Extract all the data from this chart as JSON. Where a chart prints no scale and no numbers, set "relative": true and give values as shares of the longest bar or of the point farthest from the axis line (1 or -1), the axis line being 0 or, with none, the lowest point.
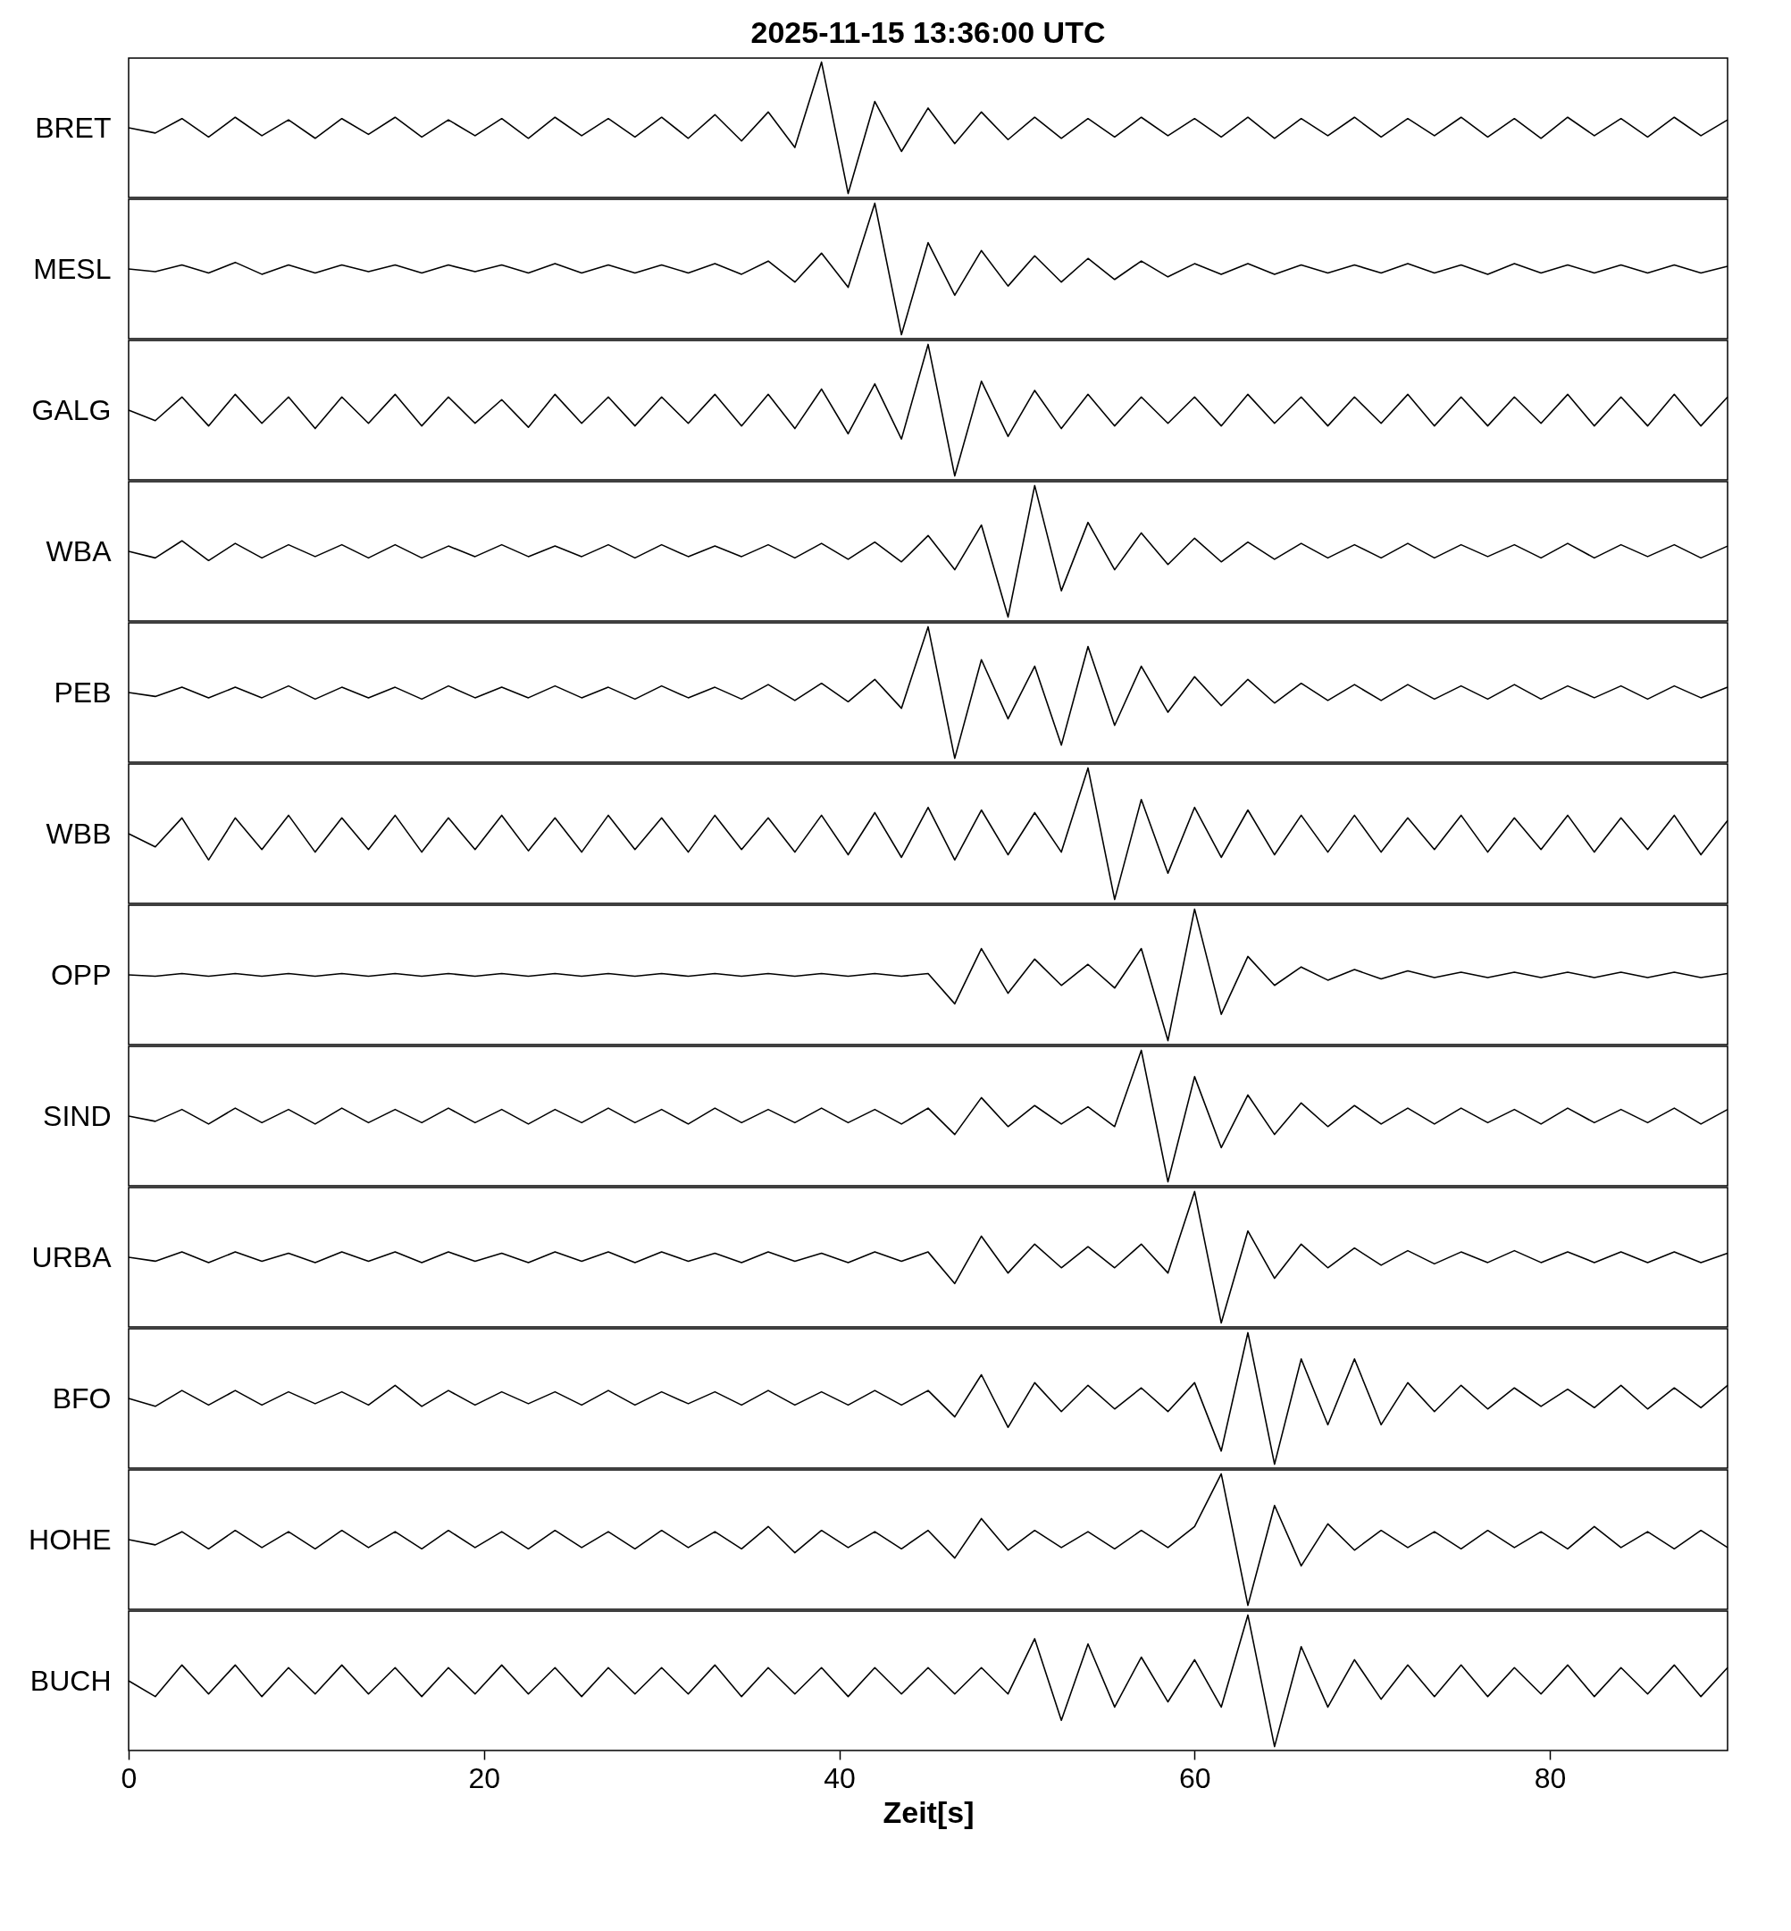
{
  "chart_data": [
    {
      "type": "line",
      "relative": true,
      "title": "2025-11-15  13:36:00 UTC",
      "ylabel": "BRET",
      "xlim": [
        0,
        90
      ],
      "xticks": [
        0,
        20,
        40,
        60,
        80
      ],
      "tick_labels": false,
      "x": [
        0,
        1.5,
        3,
        4.5,
        6,
        7.5,
        9,
        10.5,
        12,
        13.5,
        15,
        16.5,
        18,
        19.5,
        21,
        22.5,
        24,
        25.5,
        27,
        28.5,
        30,
        31.5,
        33,
        34.5,
        36,
        37.5,
        39,
        40.5,
        42,
        43.5,
        45,
        46.5,
        48,
        49.5,
        51,
        52.5,
        54,
        55.5,
        57,
        58.5,
        60,
        61.5,
        63,
        64.5,
        66,
        67.5,
        69,
        70.5,
        72,
        73.5,
        75,
        76.5,
        78,
        79.5,
        81,
        82.5,
        84,
        85.5,
        87,
        88.5,
        90
      ],
      "series": [
        {
          "color": "#000000",
          "values": [
            0.5,
            0.46,
            0.57,
            0.43,
            0.58,
            0.44,
            0.56,
            0.42,
            0.57,
            0.45,
            0.58,
            0.43,
            0.56,
            0.44,
            0.57,
            0.42,
            0.58,
            0.44,
            0.57,
            0.43,
            0.58,
            0.42,
            0.6,
            0.4,
            0.62,
            0.35,
            1.0,
            0.0,
            0.7,
            0.32,
            0.65,
            0.38,
            0.62,
            0.41,
            0.58,
            0.42,
            0.57,
            0.43,
            0.58,
            0.44,
            0.57,
            0.43,
            0.58,
            0.42,
            0.57,
            0.44,
            0.58,
            0.43,
            0.57,
            0.44,
            0.58,
            0.43,
            0.57,
            0.42,
            0.58,
            0.44,
            0.57,
            0.43,
            0.58,
            0.44,
            0.56
          ]
        }
      ]
    },
    {
      "type": "line",
      "relative": true,
      "ylabel": "MESL",
      "xlim": [
        0,
        90
      ],
      "xticks": [
        0,
        20,
        40,
        60,
        80
      ],
      "tick_labels": false,
      "x": [
        0,
        1.5,
        3,
        4.5,
        6,
        7.5,
        9,
        10.5,
        12,
        13.5,
        15,
        16.5,
        18,
        19.5,
        21,
        22.5,
        24,
        25.5,
        27,
        28.5,
        30,
        31.5,
        33,
        34.5,
        36,
        37.5,
        39,
        40.5,
        42,
        43.5,
        45,
        46.5,
        48,
        49.5,
        51,
        52.5,
        54,
        55.5,
        57,
        58.5,
        60,
        61.5,
        63,
        64.5,
        66,
        67.5,
        69,
        70.5,
        72,
        73.5,
        75,
        76.5,
        78,
        79.5,
        81,
        82.5,
        84,
        85.5,
        87,
        88.5,
        90
      ],
      "series": [
        {
          "color": "#000000",
          "values": [
            0.5,
            0.48,
            0.53,
            0.47,
            0.55,
            0.46,
            0.53,
            0.47,
            0.53,
            0.48,
            0.53,
            0.47,
            0.53,
            0.48,
            0.53,
            0.47,
            0.54,
            0.47,
            0.53,
            0.47,
            0.53,
            0.47,
            0.54,
            0.46,
            0.56,
            0.4,
            0.62,
            0.36,
            1.0,
            0.0,
            0.7,
            0.3,
            0.64,
            0.37,
            0.6,
            0.4,
            0.58,
            0.42,
            0.56,
            0.44,
            0.54,
            0.46,
            0.54,
            0.46,
            0.53,
            0.47,
            0.53,
            0.47,
            0.54,
            0.47,
            0.53,
            0.46,
            0.54,
            0.47,
            0.53,
            0.47,
            0.53,
            0.47,
            0.53,
            0.47,
            0.52
          ]
        }
      ]
    },
    {
      "type": "line",
      "relative": true,
      "ylabel": "GALG",
      "xlim": [
        0,
        90
      ],
      "xticks": [
        0,
        20,
        40,
        60,
        80
      ],
      "tick_labels": false,
      "x": [
        0,
        1.5,
        3,
        4.5,
        6,
        7.5,
        9,
        10.5,
        12,
        13.5,
        15,
        16.5,
        18,
        19.5,
        21,
        22.5,
        24,
        25.5,
        27,
        28.5,
        30,
        31.5,
        33,
        34.5,
        36,
        37.5,
        39,
        40.5,
        42,
        43.5,
        45,
        46.5,
        48,
        49.5,
        51,
        52.5,
        54,
        55.5,
        57,
        58.5,
        60,
        61.5,
        63,
        64.5,
        66,
        67.5,
        69,
        70.5,
        72,
        73.5,
        75,
        76.5,
        78,
        79.5,
        81,
        82.5,
        84,
        85.5,
        87,
        88.5,
        90
      ],
      "series": [
        {
          "color": "#000000",
          "values": [
            0.5,
            0.42,
            0.6,
            0.38,
            0.62,
            0.4,
            0.6,
            0.36,
            0.6,
            0.4,
            0.62,
            0.38,
            0.6,
            0.4,
            0.58,
            0.37,
            0.62,
            0.4,
            0.6,
            0.38,
            0.6,
            0.4,
            0.62,
            0.38,
            0.62,
            0.36,
            0.66,
            0.32,
            0.7,
            0.28,
            1.0,
            0.0,
            0.72,
            0.3,
            0.65,
            0.36,
            0.62,
            0.38,
            0.6,
            0.4,
            0.6,
            0.38,
            0.62,
            0.4,
            0.6,
            0.38,
            0.6,
            0.4,
            0.62,
            0.38,
            0.6,
            0.38,
            0.6,
            0.4,
            0.62,
            0.38,
            0.6,
            0.38,
            0.62,
            0.38,
            0.6
          ]
        }
      ]
    },
    {
      "type": "line",
      "relative": true,
      "ylabel": "WBA",
      "xlim": [
        0,
        90
      ],
      "xticks": [
        0,
        20,
        40,
        60,
        80
      ],
      "tick_labels": false,
      "x": [
        0,
        1.5,
        3,
        4.5,
        6,
        7.5,
        9,
        10.5,
        12,
        13.5,
        15,
        16.5,
        18,
        19.5,
        21,
        22.5,
        24,
        25.5,
        27,
        28.5,
        30,
        31.5,
        33,
        34.5,
        36,
        37.5,
        39,
        40.5,
        42,
        43.5,
        45,
        46.5,
        48,
        49.5,
        51,
        52.5,
        54,
        55.5,
        57,
        58.5,
        60,
        61.5,
        63,
        64.5,
        66,
        67.5,
        69,
        70.5,
        72,
        73.5,
        75,
        76.5,
        78,
        79.5,
        81,
        82.5,
        84,
        85.5,
        87,
        88.5,
        90
      ],
      "series": [
        {
          "color": "#000000",
          "values": [
            0.5,
            0.45,
            0.58,
            0.43,
            0.56,
            0.45,
            0.55,
            0.46,
            0.55,
            0.45,
            0.55,
            0.45,
            0.54,
            0.46,
            0.55,
            0.46,
            0.54,
            0.46,
            0.55,
            0.45,
            0.55,
            0.46,
            0.54,
            0.46,
            0.55,
            0.45,
            0.56,
            0.44,
            0.57,
            0.42,
            0.62,
            0.36,
            0.7,
            0.0,
            1.0,
            0.2,
            0.72,
            0.36,
            0.64,
            0.4,
            0.6,
            0.42,
            0.57,
            0.44,
            0.56,
            0.45,
            0.55,
            0.45,
            0.56,
            0.45,
            0.55,
            0.46,
            0.55,
            0.45,
            0.56,
            0.45,
            0.55,
            0.46,
            0.55,
            0.45,
            0.54
          ]
        }
      ]
    },
    {
      "type": "line",
      "relative": true,
      "ylabel": "PEB",
      "xlim": [
        0,
        90
      ],
      "xticks": [
        0,
        20,
        40,
        60,
        80
      ],
      "tick_labels": false,
      "x": [
        0,
        1.5,
        3,
        4.5,
        6,
        7.5,
        9,
        10.5,
        12,
        13.5,
        15,
        16.5,
        18,
        19.5,
        21,
        22.5,
        24,
        25.5,
        27,
        28.5,
        30,
        31.5,
        33,
        34.5,
        36,
        37.5,
        39,
        40.5,
        42,
        43.5,
        45,
        46.5,
        48,
        49.5,
        51,
        52.5,
        54,
        55.5,
        57,
        58.5,
        60,
        61.5,
        63,
        64.5,
        66,
        67.5,
        69,
        70.5,
        72,
        73.5,
        75,
        76.5,
        78,
        79.5,
        81,
        82.5,
        84,
        85.5,
        87,
        88.5,
        90
      ],
      "series": [
        {
          "color": "#000000",
          "values": [
            0.5,
            0.47,
            0.54,
            0.46,
            0.54,
            0.46,
            0.55,
            0.45,
            0.54,
            0.46,
            0.54,
            0.45,
            0.55,
            0.46,
            0.54,
            0.46,
            0.55,
            0.46,
            0.54,
            0.45,
            0.55,
            0.46,
            0.54,
            0.45,
            0.56,
            0.44,
            0.57,
            0.43,
            0.6,
            0.38,
            1.0,
            0.0,
            0.75,
            0.3,
            0.7,
            0.1,
            0.85,
            0.25,
            0.7,
            0.35,
            0.62,
            0.4,
            0.6,
            0.42,
            0.57,
            0.44,
            0.56,
            0.44,
            0.56,
            0.45,
            0.55,
            0.45,
            0.56,
            0.45,
            0.55,
            0.46,
            0.55,
            0.45,
            0.55,
            0.46,
            0.54
          ]
        }
      ]
    },
    {
      "type": "line",
      "relative": true,
      "ylabel": "WBB",
      "xlim": [
        0,
        90
      ],
      "xticks": [
        0,
        20,
        40,
        60,
        80
      ],
      "tick_labels": false,
      "x": [
        0,
        1.5,
        3,
        4.5,
        6,
        7.5,
        9,
        10.5,
        12,
        13.5,
        15,
        16.5,
        18,
        19.5,
        21,
        22.5,
        24,
        25.5,
        27,
        28.5,
        30,
        31.5,
        33,
        34.5,
        36,
        37.5,
        39,
        40.5,
        42,
        43.5,
        45,
        46.5,
        48,
        49.5,
        51,
        52.5,
        54,
        55.5,
        57,
        58.5,
        60,
        61.5,
        63,
        64.5,
        66,
        67.5,
        69,
        70.5,
        72,
        73.5,
        75,
        76.5,
        78,
        79.5,
        81,
        82.5,
        84,
        85.5,
        87,
        88.5,
        90
      ],
      "series": [
        {
          "color": "#000000",
          "values": [
            0.5,
            0.4,
            0.62,
            0.3,
            0.62,
            0.38,
            0.64,
            0.36,
            0.62,
            0.38,
            0.64,
            0.36,
            0.62,
            0.38,
            0.64,
            0.37,
            0.62,
            0.36,
            0.64,
            0.38,
            0.62,
            0.36,
            0.64,
            0.38,
            0.62,
            0.36,
            0.64,
            0.34,
            0.66,
            0.32,
            0.7,
            0.3,
            0.68,
            0.34,
            0.66,
            0.36,
            1.0,
            0.0,
            0.76,
            0.2,
            0.7,
            0.32,
            0.68,
            0.34,
            0.64,
            0.36,
            0.64,
            0.36,
            0.62,
            0.38,
            0.64,
            0.36,
            0.62,
            0.38,
            0.64,
            0.36,
            0.62,
            0.38,
            0.64,
            0.34,
            0.6
          ]
        }
      ]
    },
    {
      "type": "line",
      "relative": true,
      "ylabel": "OPP",
      "xlim": [
        0,
        90
      ],
      "xticks": [
        0,
        20,
        40,
        60,
        80
      ],
      "tick_labels": false,
      "x": [
        0,
        1.5,
        3,
        4.5,
        6,
        7.5,
        9,
        10.5,
        12,
        13.5,
        15,
        16.5,
        18,
        19.5,
        21,
        22.5,
        24,
        25.5,
        27,
        28.5,
        30,
        31.5,
        33,
        34.5,
        36,
        37.5,
        39,
        40.5,
        42,
        43.5,
        45,
        46.5,
        48,
        49.5,
        51,
        52.5,
        54,
        55.5,
        57,
        58.5,
        60,
        61.5,
        63,
        64.5,
        66,
        67.5,
        69,
        70.5,
        72,
        73.5,
        75,
        76.5,
        78,
        79.5,
        81,
        82.5,
        84,
        85.5,
        87,
        88.5,
        90
      ],
      "series": [
        {
          "color": "#000000",
          "values": [
            0.5,
            0.49,
            0.51,
            0.49,
            0.51,
            0.49,
            0.51,
            0.49,
            0.51,
            0.49,
            0.51,
            0.49,
            0.51,
            0.49,
            0.51,
            0.49,
            0.51,
            0.49,
            0.51,
            0.49,
            0.51,
            0.49,
            0.51,
            0.49,
            0.51,
            0.49,
            0.51,
            0.49,
            0.51,
            0.49,
            0.51,
            0.28,
            0.7,
            0.36,
            0.62,
            0.42,
            0.58,
            0.4,
            0.7,
            0.0,
            1.0,
            0.2,
            0.64,
            0.42,
            0.56,
            0.46,
            0.54,
            0.47,
            0.53,
            0.48,
            0.52,
            0.48,
            0.52,
            0.48,
            0.52,
            0.48,
            0.52,
            0.48,
            0.52,
            0.48,
            0.51
          ]
        }
      ]
    },
    {
      "type": "line",
      "relative": true,
      "ylabel": "SIND",
      "xlim": [
        0,
        90
      ],
      "xticks": [
        0,
        20,
        40,
        60,
        80
      ],
      "tick_labels": false,
      "x": [
        0,
        1.5,
        3,
        4.5,
        6,
        7.5,
        9,
        10.5,
        12,
        13.5,
        15,
        16.5,
        18,
        19.5,
        21,
        22.5,
        24,
        25.5,
        27,
        28.5,
        30,
        31.5,
        33,
        34.5,
        36,
        37.5,
        39,
        40.5,
        42,
        43.5,
        45,
        46.5,
        48,
        49.5,
        51,
        52.5,
        54,
        55.5,
        57,
        58.5,
        60,
        61.5,
        63,
        64.5,
        66,
        67.5,
        69,
        70.5,
        72,
        73.5,
        75,
        76.5,
        78,
        79.5,
        81,
        82.5,
        84,
        85.5,
        87,
        88.5,
        90
      ],
      "series": [
        {
          "color": "#000000",
          "values": [
            0.5,
            0.46,
            0.55,
            0.44,
            0.56,
            0.45,
            0.55,
            0.44,
            0.56,
            0.45,
            0.55,
            0.45,
            0.56,
            0.45,
            0.55,
            0.44,
            0.55,
            0.45,
            0.56,
            0.45,
            0.55,
            0.44,
            0.56,
            0.45,
            0.55,
            0.45,
            0.56,
            0.45,
            0.55,
            0.44,
            0.56,
            0.36,
            0.64,
            0.42,
            0.58,
            0.44,
            0.57,
            0.42,
            1.0,
            0.0,
            0.8,
            0.26,
            0.66,
            0.36,
            0.6,
            0.42,
            0.58,
            0.44,
            0.56,
            0.44,
            0.56,
            0.45,
            0.55,
            0.44,
            0.56,
            0.45,
            0.55,
            0.45,
            0.56,
            0.44,
            0.55
          ]
        }
      ]
    },
    {
      "type": "line",
      "relative": true,
      "ylabel": "URBA",
      "xlim": [
        0,
        90
      ],
      "xticks": [
        0,
        20,
        40,
        60,
        80
      ],
      "tick_labels": false,
      "x": [
        0,
        1.5,
        3,
        4.5,
        6,
        7.5,
        9,
        10.5,
        12,
        13.5,
        15,
        16.5,
        18,
        19.5,
        21,
        22.5,
        24,
        25.5,
        27,
        28.5,
        30,
        31.5,
        33,
        34.5,
        36,
        37.5,
        39,
        40.5,
        42,
        43.5,
        45,
        46.5,
        48,
        49.5,
        51,
        52.5,
        54,
        55.5,
        57,
        58.5,
        60,
        61.5,
        63,
        64.5,
        66,
        67.5,
        69,
        70.5,
        72,
        73.5,
        75,
        76.5,
        78,
        79.5,
        81,
        82.5,
        84,
        85.5,
        87,
        88.5,
        90
      ],
      "series": [
        {
          "color": "#000000",
          "values": [
            0.5,
            0.47,
            0.54,
            0.46,
            0.54,
            0.47,
            0.53,
            0.46,
            0.54,
            0.47,
            0.54,
            0.46,
            0.54,
            0.47,
            0.53,
            0.46,
            0.54,
            0.47,
            0.54,
            0.46,
            0.54,
            0.47,
            0.53,
            0.46,
            0.54,
            0.47,
            0.53,
            0.46,
            0.54,
            0.47,
            0.54,
            0.3,
            0.66,
            0.38,
            0.6,
            0.42,
            0.58,
            0.42,
            0.6,
            0.38,
            1.0,
            0.0,
            0.7,
            0.34,
            0.6,
            0.42,
            0.57,
            0.44,
            0.55,
            0.45,
            0.54,
            0.46,
            0.55,
            0.46,
            0.54,
            0.46,
            0.54,
            0.46,
            0.54,
            0.46,
            0.53
          ]
        }
      ]
    },
    {
      "type": "line",
      "relative": true,
      "ylabel": "BFO",
      "xlim": [
        0,
        90
      ],
      "xticks": [
        0,
        20,
        40,
        60,
        80
      ],
      "tick_labels": false,
      "x": [
        0,
        1.5,
        3,
        4.5,
        6,
        7.5,
        9,
        10.5,
        12,
        13.5,
        15,
        16.5,
        18,
        19.5,
        21,
        22.5,
        24,
        25.5,
        27,
        28.5,
        30,
        31.5,
        33,
        34.5,
        36,
        37.5,
        39,
        40.5,
        42,
        43.5,
        45,
        46.5,
        48,
        49.5,
        51,
        52.5,
        54,
        55.5,
        57,
        58.5,
        60,
        61.5,
        63,
        64.5,
        66,
        67.5,
        69,
        70.5,
        72,
        73.5,
        75,
        76.5,
        78,
        79.5,
        81,
        82.5,
        84,
        85.5,
        87,
        88.5,
        90
      ],
      "series": [
        {
          "color": "#000000",
          "values": [
            0.5,
            0.44,
            0.56,
            0.45,
            0.56,
            0.45,
            0.55,
            0.46,
            0.55,
            0.45,
            0.6,
            0.44,
            0.56,
            0.45,
            0.55,
            0.46,
            0.55,
            0.45,
            0.56,
            0.45,
            0.55,
            0.46,
            0.55,
            0.45,
            0.56,
            0.45,
            0.55,
            0.45,
            0.56,
            0.45,
            0.56,
            0.36,
            0.68,
            0.28,
            0.62,
            0.4,
            0.6,
            0.42,
            0.58,
            0.4,
            0.62,
            0.1,
            1.0,
            0.0,
            0.8,
            0.3,
            0.8,
            0.3,
            0.62,
            0.4,
            0.6,
            0.42,
            0.58,
            0.44,
            0.57,
            0.43,
            0.6,
            0.42,
            0.58,
            0.43,
            0.6
          ]
        }
      ]
    },
    {
      "type": "line",
      "relative": true,
      "ylabel": "HOHE",
      "xlim": [
        0,
        90
      ],
      "xticks": [
        0,
        20,
        40,
        60,
        80
      ],
      "tick_labels": false,
      "x": [
        0,
        1.5,
        3,
        4.5,
        6,
        7.5,
        9,
        10.5,
        12,
        13.5,
        15,
        16.5,
        18,
        19.5,
        21,
        22.5,
        24,
        25.5,
        27,
        28.5,
        30,
        31.5,
        33,
        34.5,
        36,
        37.5,
        39,
        40.5,
        42,
        43.5,
        45,
        46.5,
        48,
        49.5,
        51,
        52.5,
        54,
        55.5,
        57,
        58.5,
        60,
        61.5,
        63,
        64.5,
        66,
        67.5,
        69,
        70.5,
        72,
        73.5,
        75,
        76.5,
        78,
        79.5,
        81,
        82.5,
        84,
        85.5,
        87,
        88.5,
        90
      ],
      "series": [
        {
          "color": "#000000",
          "values": [
            0.5,
            0.46,
            0.56,
            0.43,
            0.57,
            0.44,
            0.56,
            0.43,
            0.57,
            0.44,
            0.56,
            0.43,
            0.57,
            0.44,
            0.56,
            0.43,
            0.57,
            0.44,
            0.56,
            0.43,
            0.57,
            0.44,
            0.56,
            0.43,
            0.6,
            0.4,
            0.57,
            0.44,
            0.56,
            0.43,
            0.57,
            0.36,
            0.66,
            0.42,
            0.57,
            0.44,
            0.56,
            0.43,
            0.57,
            0.44,
            0.6,
            1.0,
            0.0,
            0.76,
            0.3,
            0.62,
            0.42,
            0.57,
            0.44,
            0.56,
            0.43,
            0.57,
            0.44,
            0.56,
            0.43,
            0.6,
            0.44,
            0.56,
            0.43,
            0.57,
            0.44
          ]
        }
      ]
    },
    {
      "type": "line",
      "relative": true,
      "ylabel": "BUCH",
      "xlabel": "Zeit[s]",
      "xlim": [
        0,
        90
      ],
      "xticks": [
        0,
        20,
        40,
        60,
        80
      ],
      "tick_labels": "x",
      "x": [
        0,
        1.5,
        3,
        4.5,
        6,
        7.5,
        9,
        10.5,
        12,
        13.5,
        15,
        16.5,
        18,
        19.5,
        21,
        22.5,
        24,
        25.5,
        27,
        28.5,
        30,
        31.5,
        33,
        34.5,
        36,
        37.5,
        39,
        40.5,
        42,
        43.5,
        45,
        46.5,
        48,
        49.5,
        51,
        52.5,
        54,
        55.5,
        57,
        58.5,
        60,
        61.5,
        63,
        64.5,
        66,
        67.5,
        69,
        70.5,
        72,
        73.5,
        75,
        76.5,
        78,
        79.5,
        81,
        82.5,
        84,
        85.5,
        87,
        88.5,
        90
      ],
      "series": [
        {
          "color": "#000000",
          "values": [
            0.5,
            0.38,
            0.62,
            0.4,
            0.62,
            0.38,
            0.6,
            0.4,
            0.62,
            0.4,
            0.6,
            0.38,
            0.6,
            0.4,
            0.62,
            0.4,
            0.6,
            0.38,
            0.6,
            0.4,
            0.6,
            0.4,
            0.62,
            0.38,
            0.6,
            0.4,
            0.6,
            0.38,
            0.6,
            0.4,
            0.6,
            0.4,
            0.6,
            0.4,
            0.82,
            0.2,
            0.78,
            0.3,
            0.68,
            0.34,
            0.66,
            0.3,
            1.0,
            0.0,
            0.76,
            0.3,
            0.66,
            0.36,
            0.62,
            0.38,
            0.62,
            0.38,
            0.6,
            0.4,
            0.62,
            0.38,
            0.6,
            0.4,
            0.62,
            0.38,
            0.6
          ]
        }
      ]
    }
  ]
}
